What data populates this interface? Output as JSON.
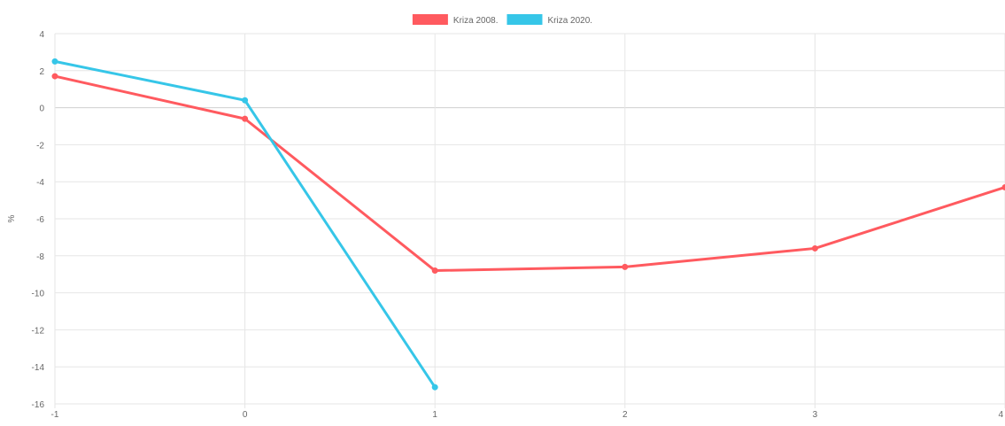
{
  "chart_data": {
    "type": "line",
    "title": "",
    "xlabel": "",
    "ylabel": "%",
    "x": [
      -1,
      0,
      1,
      2,
      3,
      4
    ],
    "xlim": [
      -1,
      4
    ],
    "ylim": [
      -16,
      4
    ],
    "y_ticks": [
      4,
      2,
      0,
      -2,
      -4,
      -6,
      -8,
      -10,
      -12,
      -14,
      -16
    ],
    "x_ticks": [
      -1,
      0,
      1,
      2,
      3,
      4
    ],
    "grid": true,
    "legend_position": "top-center",
    "series": [
      {
        "name": "Kriza 2008.",
        "color": "#ff5a5f",
        "values": [
          1.7,
          -0.6,
          -8.8,
          -8.6,
          -7.6,
          -4.3
        ]
      },
      {
        "name": "Kriza 2020.",
        "color": "#36c6e8",
        "values": [
          2.5,
          0.4,
          -15.1,
          null,
          null,
          null
        ]
      }
    ]
  }
}
